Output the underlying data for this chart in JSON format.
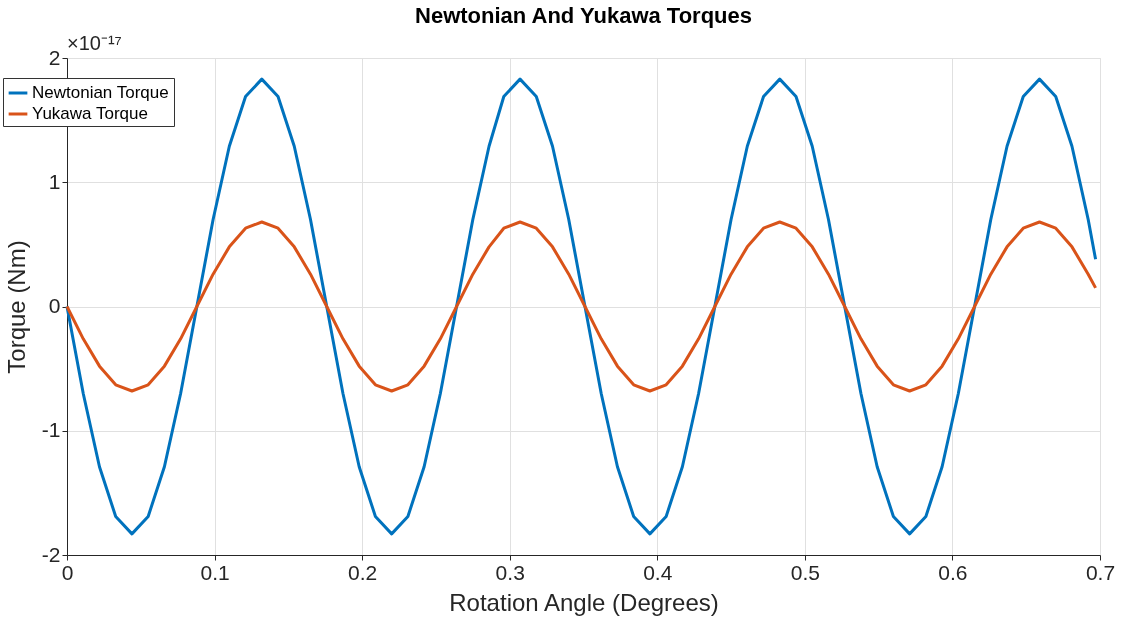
{
  "chart_data": {
    "type": "line",
    "title": "Newtonian And Yukawa Torques",
    "xlabel": "Rotation Angle (Degrees)",
    "ylabel": "Torque (Nm)",
    "annotations": [
      "×10⁻¹⁷"
    ],
    "x": [
      0,
      0.011,
      0.022,
      0.033,
      0.044,
      0.055,
      0.066,
      0.077,
      0.088,
      0.099,
      0.11,
      0.121,
      0.132,
      0.143,
      0.154,
      0.165,
      0.176,
      0.187,
      0.198,
      0.209,
      0.22,
      0.231,
      0.242,
      0.253,
      0.264,
      0.275,
      0.286,
      0.296,
      0.307,
      0.318,
      0.329,
      0.34,
      0.351,
      0.362,
      0.373,
      0.384,
      0.395,
      0.406,
      0.417,
      0.428,
      0.439,
      0.45,
      0.461,
      0.472,
      0.483,
      0.494,
      0.505,
      0.516,
      0.527,
      0.538,
      0.549,
      0.56,
      0.571,
      0.582,
      0.593,
      0.604,
      0.615,
      0.626,
      0.637,
      0.648,
      0.659,
      0.67,
      0.681,
      0.692,
      0.697
    ],
    "series": [
      {
        "name": "Newtonian Torque",
        "color": "#0072bd",
        "values": [
          0,
          -0.7,
          -1.29,
          -1.69,
          -1.83,
          -1.69,
          -1.29,
          -0.7,
          0,
          0.7,
          1.29,
          1.69,
          1.83,
          1.69,
          1.29,
          0.7,
          0,
          -0.7,
          -1.29,
          -1.69,
          -1.83,
          -1.69,
          -1.29,
          -0.7,
          0,
          0.7,
          1.29,
          1.69,
          1.83,
          1.69,
          1.29,
          0.7,
          0,
          -0.7,
          -1.29,
          -1.69,
          -1.83,
          -1.69,
          -1.29,
          -0.7,
          0,
          0.7,
          1.29,
          1.69,
          1.83,
          1.69,
          1.29,
          0.7,
          0,
          -0.7,
          -1.29,
          -1.69,
          -1.83,
          -1.69,
          -1.29,
          -0.7,
          0,
          0.7,
          1.29,
          1.69,
          1.83,
          1.69,
          1.29,
          0.7,
          0.38
        ]
      },
      {
        "name": "Yukawa Torque",
        "color": "#d95319",
        "values": [
          0,
          -0.26,
          -0.48,
          -0.63,
          -0.68,
          -0.63,
          -0.48,
          -0.26,
          0,
          0.26,
          0.48,
          0.63,
          0.68,
          0.63,
          0.48,
          0.26,
          0,
          -0.26,
          -0.48,
          -0.63,
          -0.68,
          -0.63,
          -0.48,
          -0.26,
          0,
          0.26,
          0.48,
          0.63,
          0.68,
          0.63,
          0.48,
          0.26,
          0,
          -0.26,
          -0.48,
          -0.63,
          -0.68,
          -0.63,
          -0.48,
          -0.26,
          0,
          0.26,
          0.48,
          0.63,
          0.68,
          0.63,
          0.48,
          0.26,
          0,
          -0.26,
          -0.48,
          -0.63,
          -0.68,
          -0.63,
          -0.48,
          -0.26,
          0,
          0.26,
          0.48,
          0.63,
          0.68,
          0.63,
          0.48,
          0.26,
          0.15
        ]
      }
    ],
    "xlim": [
      0,
      0.7
    ],
    "xticks": [
      0,
      0.1,
      0.2,
      0.3,
      0.4,
      0.5,
      0.6,
      0.7
    ],
    "ylim": [
      -2,
      2
    ],
    "yticks": [
      -2,
      -1,
      0,
      1,
      2
    ],
    "grid": true,
    "legend": "top left",
    "line_style": "solid",
    "marker": "none"
  }
}
